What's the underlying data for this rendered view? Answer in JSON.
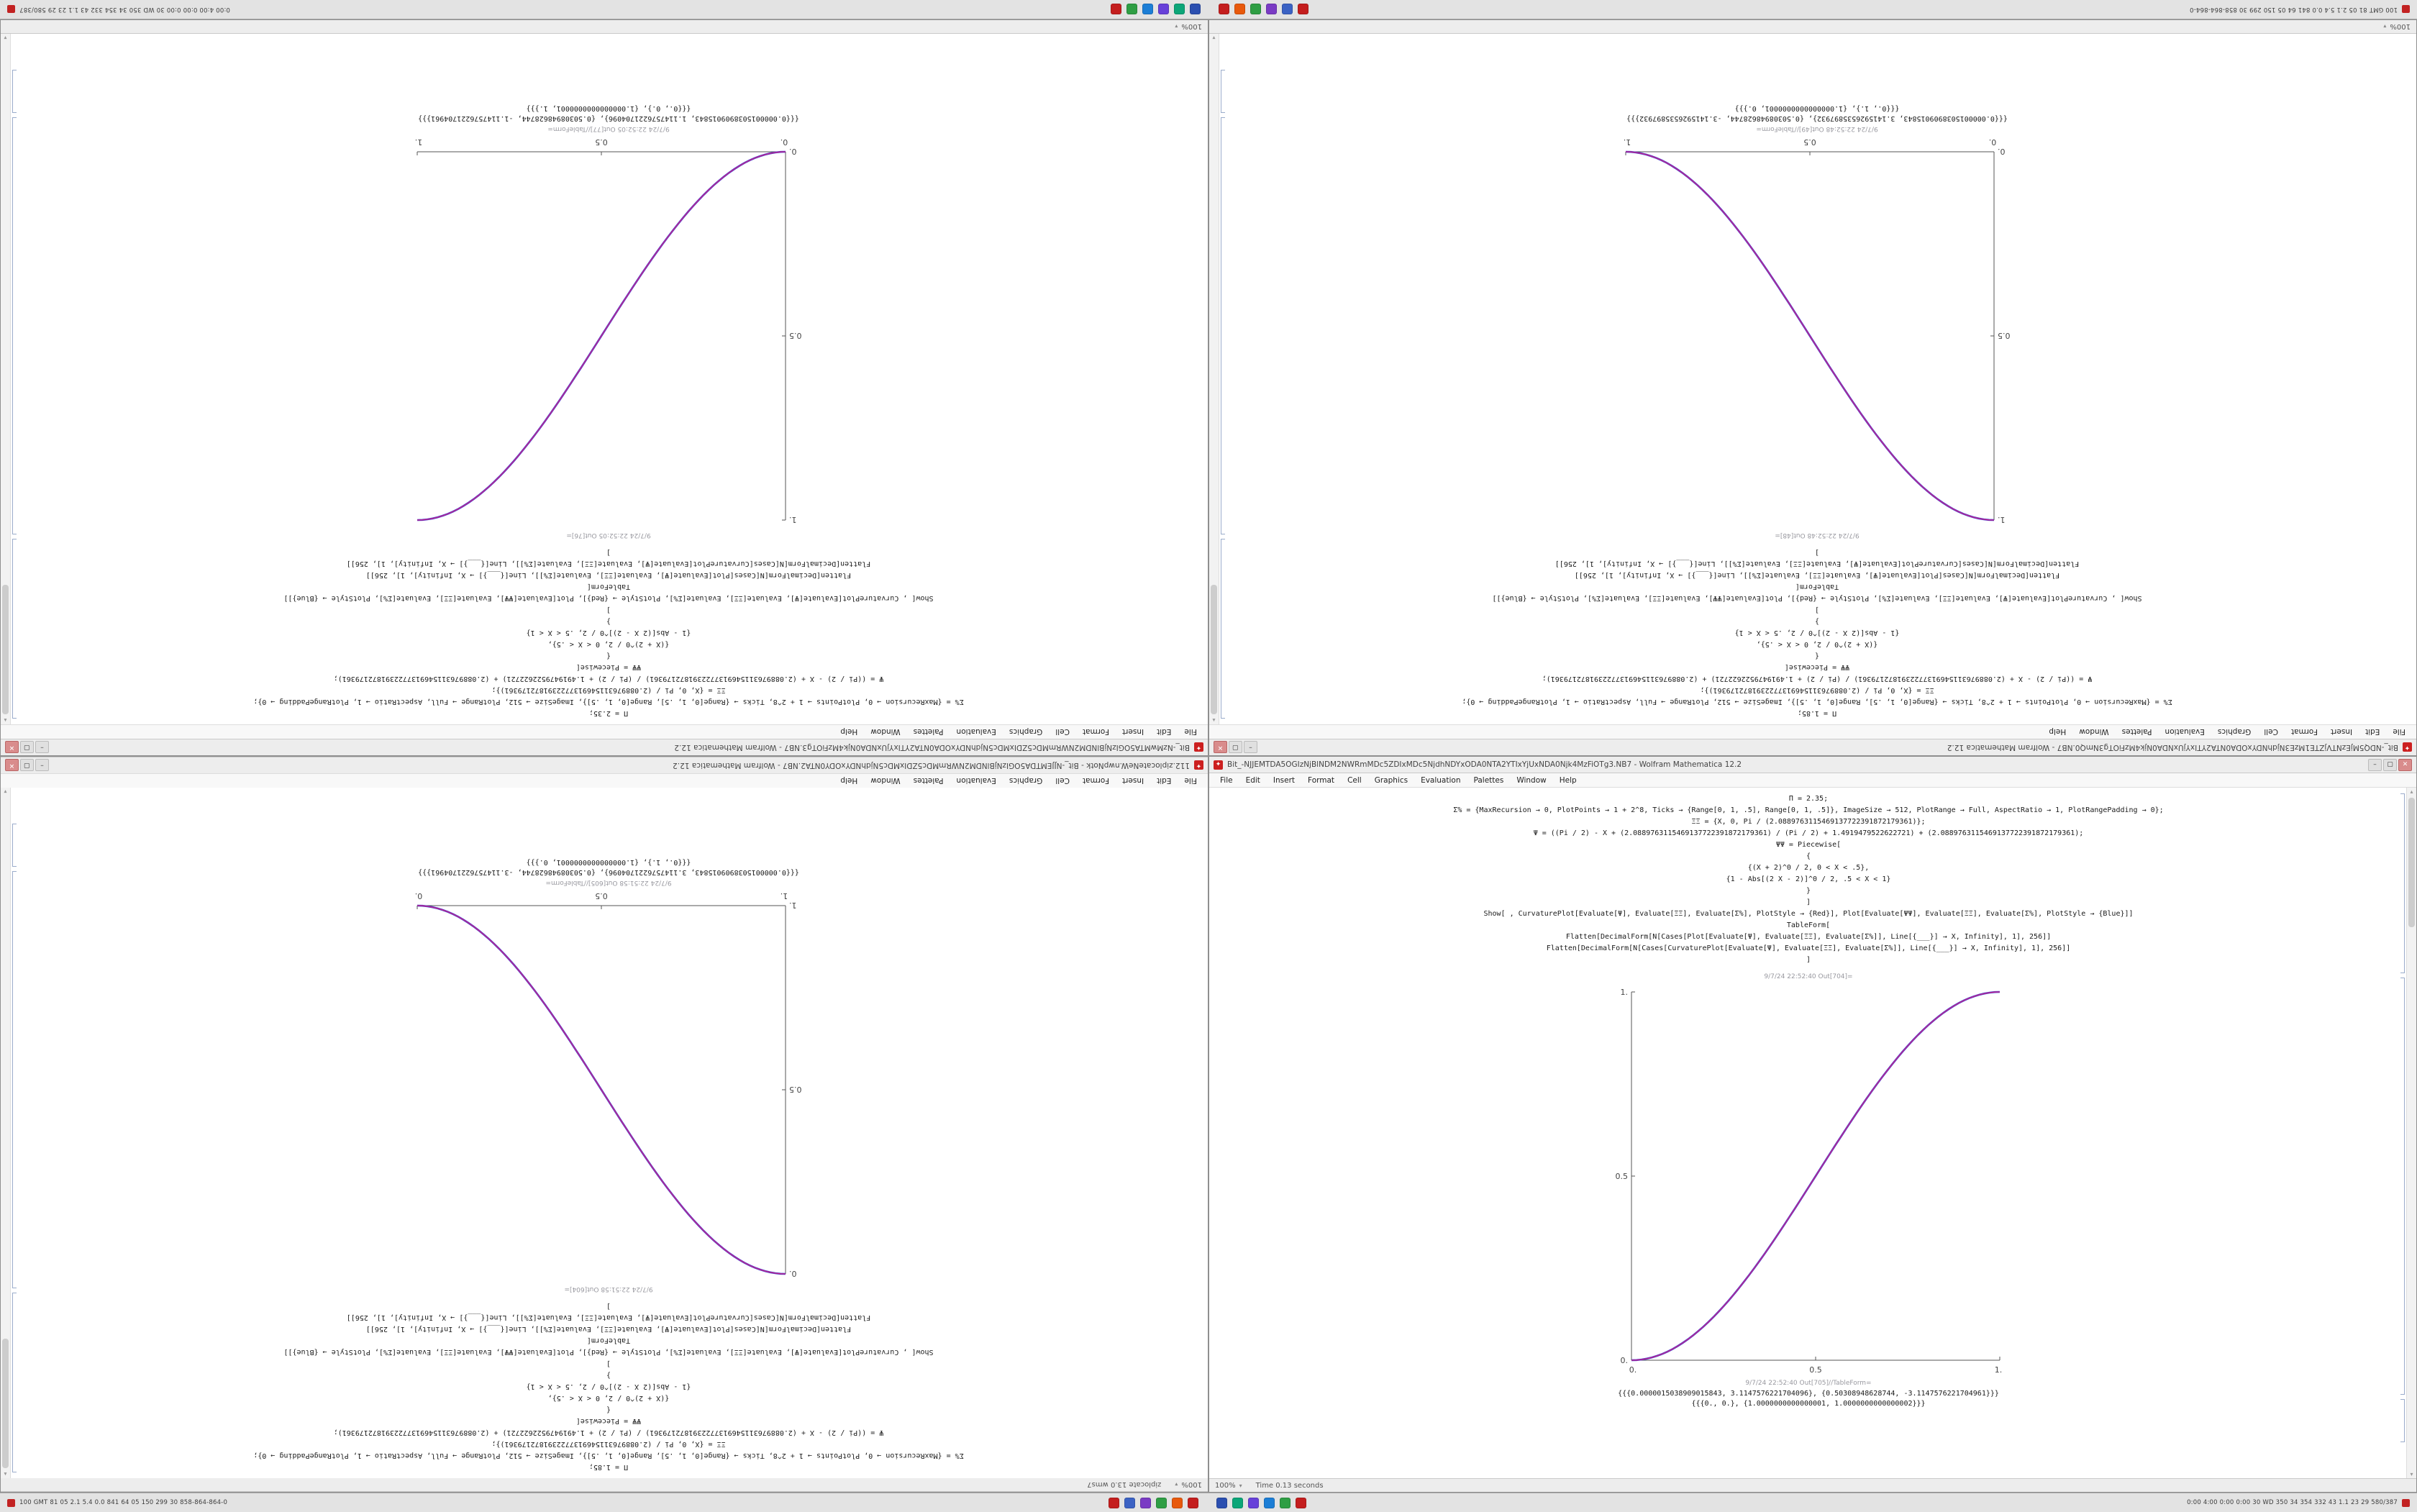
{
  "taskbar": {
    "left_text": "100 GMT 81 05 2.1 5.4 0.0 841 64 05 150 299 30 858-864-864-0",
    "right_text": "0:00 4:00 0:00 0:00 30 WD 350 34 354 332 43 1.1 23 29 580/387",
    "icons": [
      {
        "name": "mathematica-icon",
        "color": "#c41e1e"
      },
      {
        "name": "browser-icon",
        "color": "#3b62c4"
      },
      {
        "name": "media-player-icon",
        "color": "#7a3bc4"
      },
      {
        "name": "files-icon",
        "color": "#2f9e44"
      },
      {
        "name": "mail-icon",
        "color": "#e8590c"
      },
      {
        "name": "notebook-icon",
        "color": "#c41e1e"
      },
      {
        "name": "code-editor-icon",
        "color": "#2b4fb0"
      },
      {
        "name": "chat-icon",
        "color": "#0ca678"
      },
      {
        "name": "music-icon",
        "color": "#6741d9"
      },
      {
        "name": "documents-icon",
        "color": "#1c7ed6"
      },
      {
        "name": "terminal-icon",
        "color": "#2f9e44"
      },
      {
        "name": "settings-icon",
        "color": "#c41e1e"
      }
    ]
  },
  "menu": [
    "File",
    "Edit",
    "Insert",
    "Format",
    "Cell",
    "Graphics",
    "Evaluation",
    "Palettes",
    "Window",
    "Help"
  ],
  "chrome": {
    "icon_glyph": "✦",
    "minimize": "–",
    "maximize": "▢",
    "close": "✕",
    "zoom": "100%",
    "zoom_caret": "▾",
    "scroll_up": "▴",
    "scroll_down": "▾"
  },
  "windows": [
    {
      "title": "Bit_-NzMwMTA5OGIzNjBlNDM2NWRmMDc5ZDIxMDc5NjdhNDYxODA0NTA2YTIxYjUxNDA0Njk4MzFiOTg3.NB7 - Wolfram Mathematica 12.2",
      "status_text": "",
      "code": [
        "Π = 2.35;",
        "Σ% = {MaxRecursion → 0, PlotPoints → 1 + 2^8, Ticks → {Range[0, 1, .5], Range[0, 1, .5]}, ImageSize → 512, PlotRange → Full, AspectRatio → 1, PlotRangePadding → 0};",
        "ΞΞ = {X, 0, Pi / (2.0889763115469137722391872179361)};",
        "Ψ = ((Pi / 2) - X + (2.0889763115469137722391872179361) / (Pi / 2) + 1.4919479522622721) + (2.0889763115469137722391872179361);",
        "ΨΨ = Piecewise[",
        "{",
        "{(X + 2)^0 / 2, 0 < X < .5},",
        "{1 - Abs[(2 X - 2)]^0 / 2, .5 < X < 1}",
        "}",
        "]",
        "Show[ , CurvaturePlot[Evaluate[Ψ], Evaluate[ΞΞ], Evaluate[Σ%], PlotStyle → {Red}], Plot[Evaluate[ΨΨ], Evaluate[ΞΞ], Evaluate[Σ%], PlotStyle → {Blue}]]",
        "TableForm[",
        "Flatten[DecimalForm[N[Cases[Plot[Evaluate[Ψ], Evaluate[ΞΞ], Evaluate[Σ%]], Line[{___}] → X, Infinity], 1], 256]]",
        "Flatten[DecimalForm[N[Cases[CurvaturePlot[Evaluate[Ψ], Evaluate[ΞΞ], Evaluate[Σ%]], Line[{___}] → X, Infinity], 1], 256]]",
        "]"
      ],
      "out_plot_label": "9/7/24 22:52:05   Out[76]=",
      "out_table_label": "9/7/24 22:52:05   Out[77]//TableForm=",
      "out_lines": [
        "{{{0.0000015038909015843, 1.1147576221704096}, {0.50308948628744, -1.1147576221704961}}}",
        "{{{0., 0.}, {1.0000000000000001, 1.}}}"
      ],
      "plot": {
        "direction": "rising",
        "x_range": [
          0,
          1
        ],
        "y_range": [
          0,
          1
        ],
        "x_ticks": [
          "0.",
          "0.5",
          "1."
        ],
        "y_ticks": [
          "1.",
          "0.5",
          "0."
        ],
        "series": [
          {
            "name": "Plot (Blue)",
            "color": "#3a3ad0"
          },
          {
            "name": "CurvaturePlot (Red)",
            "color": "#cc2288"
          }
        ]
      }
    },
    {
      "title": "Bit_-NDQ5MjEzNTVjZTE1MzE3NjdhNDYxODA0NTA2YTIxYjUxNDA0Njk4MzFiOTg3NmQ0.NB7 - Wolfram Mathematica 12.2",
      "status_text": "",
      "code": [
        "Π = 1.85;",
        "Σ% = {MaxRecursion → 0, PlotPoints → 1 + 2^8, Ticks → {Range[0, 1, .5], Range[0, 1, .5]}, ImageSize → 512, PlotRange → Full, AspectRatio → 1, PlotRangePadding → 0};",
        "ΞΞ = {X, 0, Pi / (2.0889763115469137722391872179361)};",
        "Ψ = ((Pi / 2) - X + (2.0889763115469137722391872179361) / (Pi / 2) + 1.4919479522622721) + (2.0889763115469137722391872179361);",
        "ΨΨ = Piecewise[",
        "{",
        "{(X + 2)^0 / 2, 0 < X < .5},",
        "{1 - Abs[(2 X - 2)]^0 / 2, .5 < X < 1}",
        "}",
        "]",
        "Show[ , CurvaturePlot[Evaluate[Ψ], Evaluate[ΞΞ], Evaluate[Σ%], PlotStyle → {Red}], Plot[Evaluate[ΨΨ], Evaluate[ΞΞ], Evaluate[Σ%], PlotStyle → {Blue}]]",
        "TableForm[",
        "Flatten[DecimalForm[N[Cases[Plot[Evaluate[Ψ], Evaluate[ΞΞ], Evaluate[Σ%]], Line[{___}] → X, Infinity], 1], 256]]",
        "Flatten[DecimalForm[N[Cases[CurvaturePlot[Evaluate[Ψ], Evaluate[ΞΞ], Evaluate[Σ%]], Line[{___}] → X, Infinity], 1], 256]]",
        "]"
      ],
      "out_plot_label": "9/7/24 22:52:48   Out[48]=",
      "out_table_label": "9/7/24 22:52:48   Out[49]//TableForm=",
      "out_lines": [
        "{{{0.0000015038909015843, 3.1415926535897932}, {0.50308948628744, -3.1415926535897932}}}",
        "{{{0., 1.}, {1.0000000000000001, 0.}}}"
      ],
      "plot": {
        "direction": "falling",
        "x_range": [
          0,
          1
        ],
        "y_range": [
          0,
          1
        ],
        "x_ticks": [
          "0.",
          "0.5",
          "1."
        ],
        "y_ticks": [
          "1.",
          "0.5",
          "0."
        ],
        "series": [
          {
            "name": "Plot (Blue)",
            "color": "#3a3ad0"
          },
          {
            "name": "CurvaturePlot (Red)",
            "color": "#cc2288"
          }
        ]
      }
    },
    {
      "title": "112.ziplocateNeW.nwpNotk - Bit_-NJJEMTDA5OGIzNjBlNDM2NWRmMDc5ZDIxMDc5NjdhNDYxODY0NTA2.NB7 - Wolfram Mathematica 12.2",
      "status_text": "ziplocate 13.0 wms7",
      "code": [
        "Π = 1.85;",
        "Σ% = {MaxRecursion → 0, PlotPoints → 1 + 2^8, Ticks → {Range[0, 1, .5], Range[0, 1, .5]}, ImageSize → 512, PlotRange → Full, AspectRatio → 1, PlotRangePadding → 0};",
        "ΞΞ = {X, 0, Pi / (2.0889763115469137722391872179361)};",
        "Ψ = ((Pi / 2) - X + (2.0889763115469137722391872179361) / (Pi / 2) + 1.4919479522622721) + (2.0889763115469137722391872179361);",
        "ΨΨ = Piecewise[",
        "{",
        "{(X + 2)^0 / 2, 0 < X < .5},",
        "{1 - Abs[(2 X - 2)]^0 / 2, .5 < X < 1}",
        "}",
        "]",
        "Show[ , CurvaturePlot[Evaluate[Ψ], Evaluate[ΞΞ], Evaluate[Σ%], PlotStyle → {Red}], Plot[Evaluate[ΨΨ], Evaluate[ΞΞ], Evaluate[Σ%], PlotStyle → {Blue}]]",
        "TableForm[",
        "Flatten[DecimalForm[N[Cases[Plot[Evaluate[Ψ], Evaluate[ΞΞ], Evaluate[Σ%]], Line[{___}] → X, Infinity], 1], 256]]",
        "Flatten[DecimalForm[N[Cases[CurvaturePlot[Evaluate[Ψ], Evaluate[ΞΞ], Evaluate[Σ%]], Line[{___}] → X, Infinity], 1], 256]]",
        "]"
      ],
      "out_plot_label": "9/7/24 22:51:58   Out[604]=",
      "out_table_label": "9/7/24 22:51:58   Out[605]//TableForm=",
      "out_lines": [
        "{{{0.0000015038909015843, 3.1147576221704096}, {0.50308948628744, -3.1147576221704961}}}",
        "{{{0., 1.}, {1.0000000000000001, 0.}}}"
      ],
      "plot": {
        "direction": "falling",
        "x_range": [
          0,
          1
        ],
        "y_range": [
          0,
          1
        ],
        "x_ticks": [
          "1.",
          "0.5",
          "0."
        ],
        "y_ticks": [
          "0.",
          "0.5",
          "1."
        ],
        "series": [
          {
            "name": "Plot (Blue)",
            "color": "#3a3ad0"
          },
          {
            "name": "CurvaturePlot (Red)",
            "color": "#cc2288"
          }
        ]
      }
    },
    {
      "title": "Bit_-NJJEMTDA5OGIzNjBlNDM2NWRmMDc5ZDIxMDc5NjdhNDYxODA0NTA2YTIxYjUxNDA0Njk4MzFiOTg3.NB7 - Wolfram Mathematica 12.2",
      "status_text": "Time 0.13 seconds",
      "code": [
        "Π = 2.35;",
        "Σ% = {MaxRecursion → 0, PlotPoints → 1 + 2^8, Ticks → {Range[0, 1, .5], Range[0, 1, .5]}, ImageSize → 512, PlotRange → Full, AspectRatio → 1, PlotRangePadding → 0};",
        "ΞΞ = {X, 0, Pi / (2.0889763115469137722391872179361)};",
        "Ψ = ((Pi / 2) - X + (2.0889763115469137722391872179361) / (Pi / 2) + 1.4919479522622721) + (2.0889763115469137722391872179361);",
        "ΨΨ = Piecewise[",
        "{",
        "{(X + 2)^0 / 2, 0 < X < .5},",
        "{1 - Abs[(2 X - 2)]^0 / 2, .5 < X < 1}",
        "}",
        "]",
        "Show[ , CurvaturePlot[Evaluate[Ψ], Evaluate[ΞΞ], Evaluate[Σ%], PlotStyle → {Red}], Plot[Evaluate[ΨΨ], Evaluate[ΞΞ], Evaluate[Σ%], PlotStyle → {Blue}]]",
        "TableForm[",
        "Flatten[DecimalForm[N[Cases[Plot[Evaluate[Ψ], Evaluate[ΞΞ], Evaluate[Σ%]], Line[{___}] → X, Infinity], 1], 256]]",
        "Flatten[DecimalForm[N[Cases[CurvaturePlot[Evaluate[Ψ], Evaluate[ΞΞ], Evaluate[Σ%]], Line[{___}] → X, Infinity], 1], 256]]",
        "]"
      ],
      "out_plot_label": "9/7/24 22:52:40   Out[704]=",
      "out_table_label": "9/7/24 22:52:40   Out[705]//TableForm=",
      "out_lines": [
        "{{{0.0000015038909015843, 3.1147576221704096}, {0.50308948628744, -3.1147576221704961}}}",
        "{{{0., 0.}, {1.0000000000000001, 1.0000000000000002}}}"
      ],
      "plot": {
        "direction": "rising",
        "x_range": [
          0,
          1
        ],
        "y_range": [
          0,
          1
        ],
        "x_ticks": [
          "0.",
          "0.5",
          "1."
        ],
        "y_ticks": [
          "1.",
          "0.5",
          "0."
        ],
        "series": [
          {
            "name": "Plot (Blue)",
            "color": "#3a3ad0"
          },
          {
            "name": "CurvaturePlot (Red)",
            "color": "#cc2288"
          }
        ]
      }
    }
  ]
}
